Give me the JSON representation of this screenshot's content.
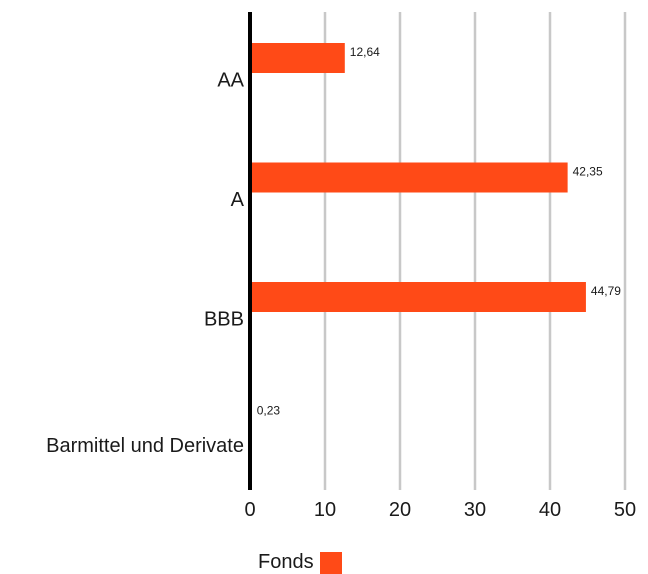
{
  "chart_data": {
    "type": "bar",
    "orientation": "horizontal",
    "categories": [
      "AA",
      "A",
      "BBB",
      "Barmittel und Derivate"
    ],
    "series": [
      {
        "name": "Fonds",
        "values": [
          12.64,
          42.35,
          44.79,
          0.23
        ],
        "labels": [
          "12,64",
          "42,35",
          "44,79",
          "0,23"
        ]
      }
    ],
    "xlim": [
      0,
      50
    ],
    "xticks": [
      "0",
      "10",
      "20",
      "30",
      "40",
      "50"
    ],
    "grid": true,
    "legend_position": "bottom-center",
    "colors": {
      "bar": "#ff4a17",
      "grid": "#c8c8c8",
      "axis": "#000000"
    }
  }
}
